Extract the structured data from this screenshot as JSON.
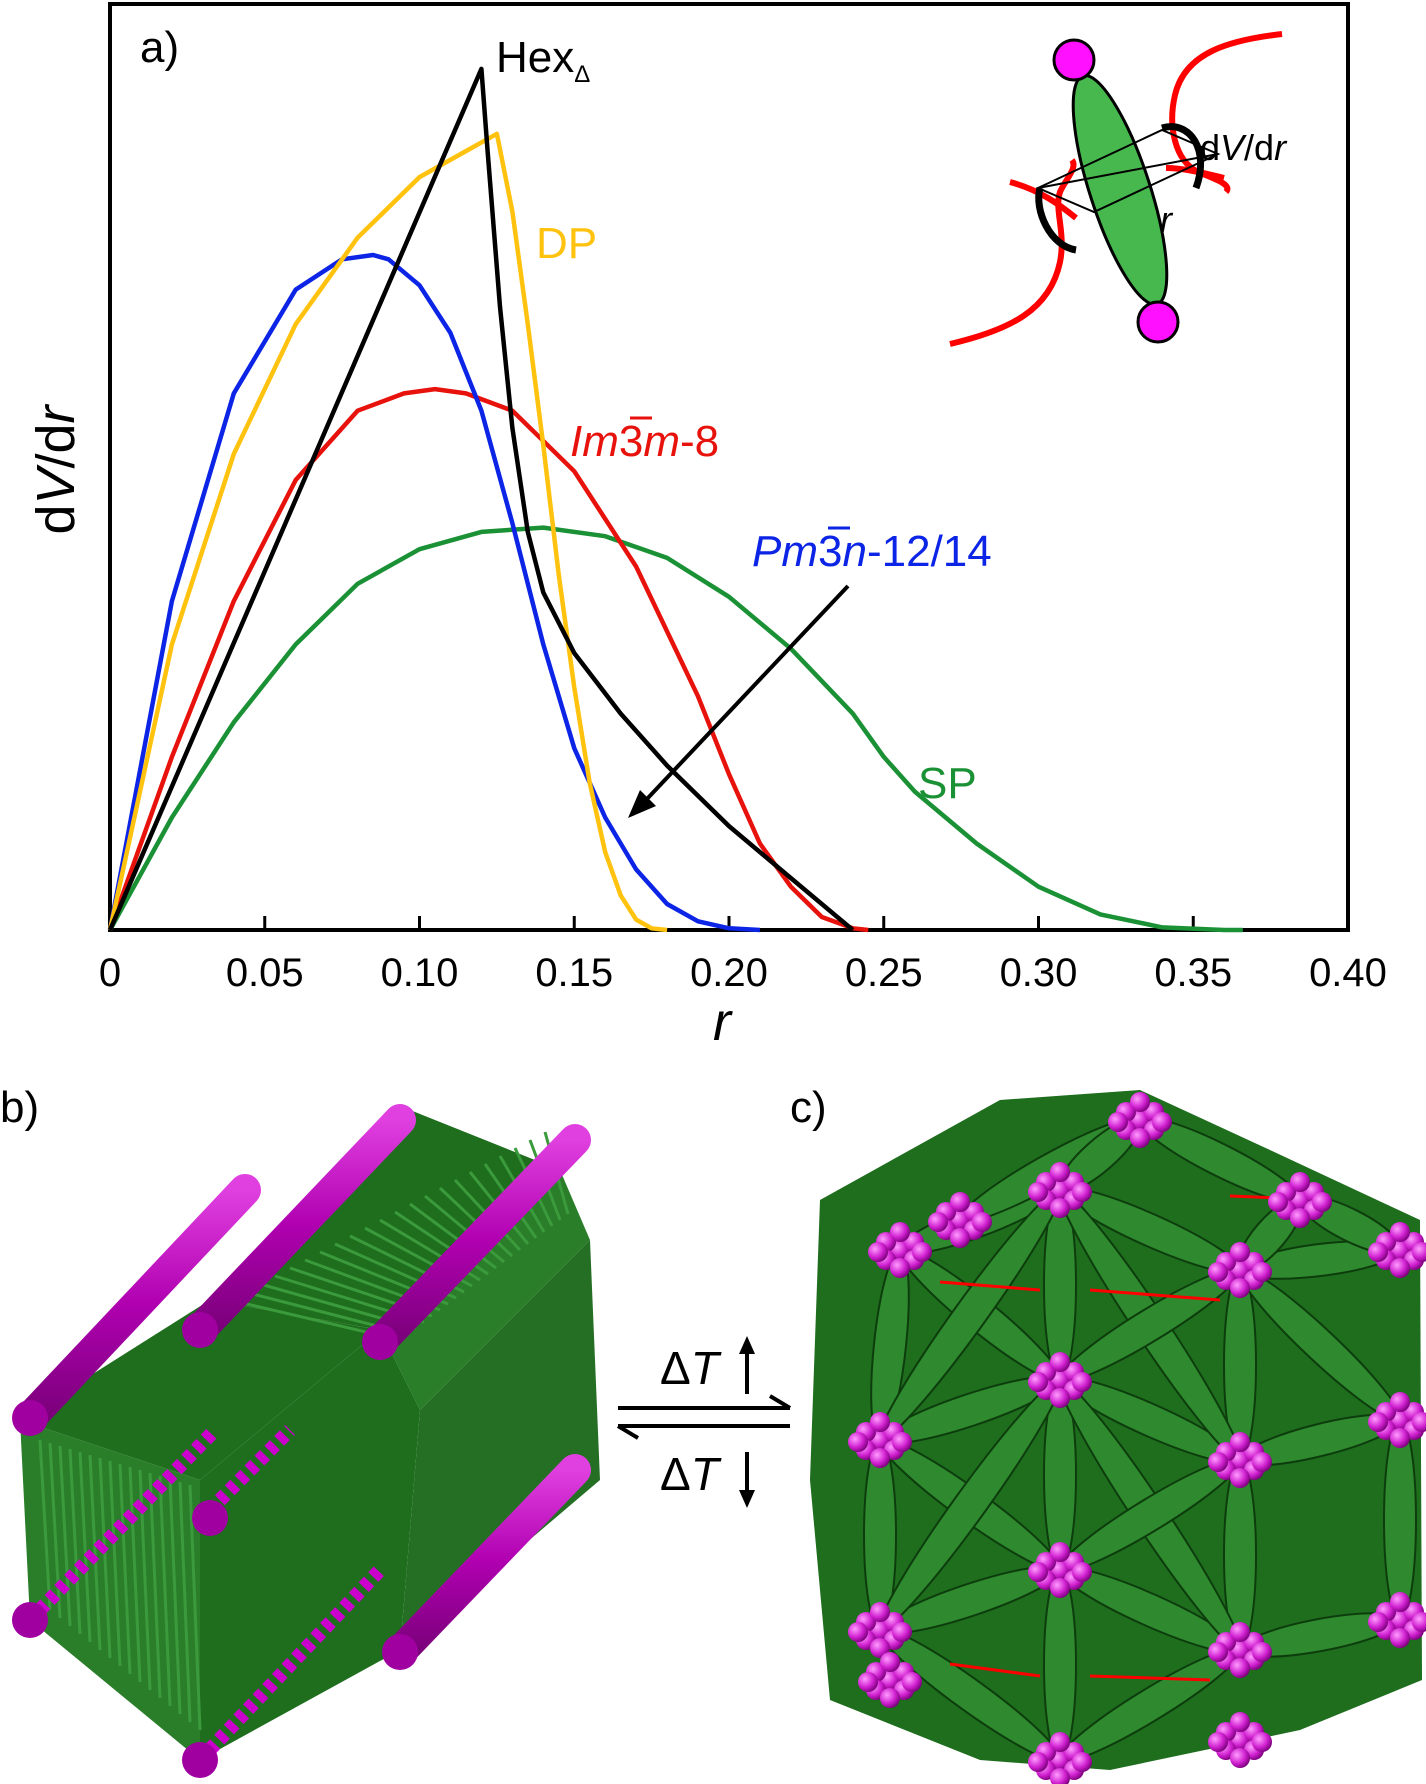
{
  "colors": {
    "hex": "#000000",
    "dp": "#FFC20E",
    "pm3n": "#0B24E6",
    "im3m": "#E8120C",
    "sp": "#1B9136",
    "molecule_core": "#46B84E",
    "molecule_end": "#FF10FF",
    "chain": "#FF0000",
    "rod_green": "#1E6E1E",
    "rod_magenta": "#CC00CC"
  },
  "panels": {
    "a": "a)",
    "b": "b)",
    "c": "c)"
  },
  "inset": {
    "dvdr_prefix": "d",
    "dvdr_v": "V",
    "dvdr_mid": "/d",
    "dvdr_r": "r",
    "r_label": "r"
  },
  "arrows": {
    "up_label_delta": "Δ",
    "up_label_t": "T",
    "down_label_delta": "Δ",
    "down_label_t": "T"
  },
  "chart_data": {
    "type": "line",
    "xlabel": "r",
    "ylabel_parts": [
      "d",
      "V",
      "/d",
      "r"
    ],
    "xlim": [
      0,
      0.4
    ],
    "ylim": [
      0,
      1.0
    ],
    "xticks": [
      "0",
      "0.05",
      "0.10",
      "0.15",
      "0.20",
      "0.25",
      "0.30",
      "0.35",
      "0.40"
    ],
    "xtick_values": [
      0,
      0.05,
      0.1,
      0.15,
      0.2,
      0.25,
      0.3,
      0.35,
      0.4
    ],
    "series": [
      {
        "key": "sp",
        "name": "SP",
        "x": [
          0,
          0.02,
          0.04,
          0.06,
          0.08,
          0.1,
          0.12,
          0.14,
          0.16,
          0.18,
          0.2,
          0.22,
          0.24,
          0.25,
          0.26,
          0.28,
          0.3,
          0.32,
          0.34,
          0.36,
          0.366
        ],
        "y": [
          0,
          0.13,
          0.24,
          0.33,
          0.4,
          0.44,
          0.46,
          0.465,
          0.455,
          0.43,
          0.385,
          0.325,
          0.25,
          0.2,
          0.16,
          0.1,
          0.05,
          0.018,
          0.003,
          0,
          0
        ]
      },
      {
        "key": "im3m",
        "name_main": "Im",
        "name_bar": "3",
        "name_tail": "m",
        "name_suffix": "-8",
        "x": [
          0,
          0.02,
          0.04,
          0.06,
          0.08,
          0.095,
          0.105,
          0.115,
          0.13,
          0.15,
          0.17,
          0.19,
          0.2,
          0.21,
          0.22,
          0.23,
          0.24,
          0.245
        ],
        "y": [
          0,
          0.2,
          0.38,
          0.52,
          0.6,
          0.62,
          0.625,
          0.62,
          0.6,
          0.53,
          0.42,
          0.27,
          0.18,
          0.1,
          0.05,
          0.015,
          0.002,
          0
        ]
      },
      {
        "key": "pm3n",
        "name_main": "Pm",
        "name_bar": "3",
        "name_tail": "n",
        "name_suffix": "-12/14",
        "x": [
          0,
          0.02,
          0.04,
          0.06,
          0.075,
          0.085,
          0.09,
          0.1,
          0.11,
          0.12,
          0.13,
          0.14,
          0.15,
          0.16,
          0.17,
          0.18,
          0.19,
          0.2,
          0.21
        ],
        "y": [
          0,
          0.38,
          0.62,
          0.74,
          0.775,
          0.78,
          0.775,
          0.745,
          0.69,
          0.6,
          0.47,
          0.33,
          0.21,
          0.13,
          0.07,
          0.03,
          0.01,
          0.002,
          0
        ]
      },
      {
        "key": "dp",
        "name": "DP",
        "x": [
          0,
          0.02,
          0.04,
          0.06,
          0.08,
          0.1,
          0.115,
          0.125,
          0.13,
          0.135,
          0.14,
          0.145,
          0.15,
          0.155,
          0.16,
          0.165,
          0.17,
          0.175,
          0.18
        ],
        "y": [
          0,
          0.33,
          0.55,
          0.7,
          0.8,
          0.87,
          0.9,
          0.92,
          0.83,
          0.7,
          0.56,
          0.41,
          0.28,
          0.17,
          0.09,
          0.04,
          0.012,
          0.002,
          0
        ]
      },
      {
        "key": "hex",
        "name_main": "Hex",
        "name_sub": "Δ",
        "x": [
          0,
          0.12,
          0.122,
          0.126,
          0.13,
          0.135,
          0.14,
          0.15,
          0.165,
          0.18,
          0.2,
          0.22,
          0.24
        ],
        "y": [
          0,
          0.995,
          0.9,
          0.72,
          0.58,
          0.46,
          0.39,
          0.32,
          0.25,
          0.19,
          0.12,
          0.06,
          0
        ]
      }
    ]
  }
}
